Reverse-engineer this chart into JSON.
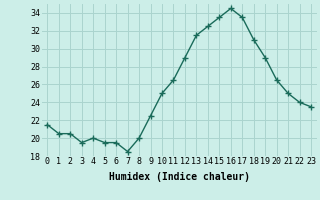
{
  "x": [
    0,
    1,
    2,
    3,
    4,
    5,
    6,
    7,
    8,
    9,
    10,
    11,
    12,
    13,
    14,
    15,
    16,
    17,
    18,
    19,
    20,
    21,
    22,
    23
  ],
  "y": [
    21.5,
    20.5,
    20.5,
    19.5,
    20.0,
    19.5,
    19.5,
    18.5,
    20.0,
    22.5,
    25.0,
    26.5,
    29.0,
    31.5,
    32.5,
    33.5,
    34.5,
    33.5,
    31.0,
    29.0,
    26.5,
    25.0,
    24.0,
    23.5
  ],
  "line_color": "#1a6b5a",
  "marker": "+",
  "marker_size": 4,
  "marker_linewidth": 1.0,
  "bg_color": "#cceee8",
  "grid_color": "#aad4ce",
  "xlabel": "Humidex (Indice chaleur)",
  "ylim": [
    18,
    35
  ],
  "xlim": [
    -0.5,
    23.5
  ],
  "yticks": [
    18,
    20,
    22,
    24,
    26,
    28,
    30,
    32,
    34
  ],
  "xtick_labels": [
    "0",
    "1",
    "2",
    "3",
    "4",
    "5",
    "6",
    "7",
    "8",
    "9",
    "10",
    "11",
    "12",
    "13",
    "14",
    "15",
    "16",
    "17",
    "18",
    "19",
    "20",
    "21",
    "22",
    "23"
  ],
  "tick_fontsize": 6,
  "xlabel_fontsize": 7,
  "linewidth": 1.0
}
